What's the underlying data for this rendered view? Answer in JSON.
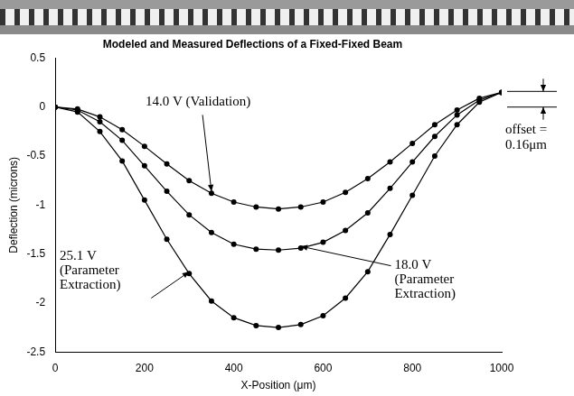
{
  "chart_data": {
    "type": "line",
    "title": "Modeled and Measured Deflections of a Fixed-Fixed Beam",
    "x_label": "X-Position (μm)",
    "y_label": "Deflection (microns)",
    "xlim": [
      0,
      1000
    ],
    "ylim": [
      -2.5,
      0.5
    ],
    "xticks": [
      0,
      200,
      400,
      600,
      800,
      1000
    ],
    "yticks": [
      -2.5,
      -2,
      -1.5,
      -1,
      -0.5,
      0,
      0.5
    ],
    "grid": false,
    "x": [
      0,
      50,
      100,
      150,
      200,
      250,
      300,
      350,
      400,
      450,
      500,
      550,
      600,
      650,
      700,
      750,
      800,
      850,
      900,
      950,
      1000
    ],
    "series": [
      {
        "name": "14.0 V (Validation)",
        "color": "#000000",
        "marker": "circle",
        "line_style": "solid",
        "values": [
          0,
          -0.02,
          -0.1,
          -0.23,
          -0.4,
          -0.58,
          -0.75,
          -0.88,
          -0.97,
          -1.02,
          -1.04,
          -1.02,
          -0.97,
          -0.87,
          -0.73,
          -0.56,
          -0.37,
          -0.18,
          -0.03,
          0.09,
          0.15
        ]
      },
      {
        "name": "18.0 V (Parameter Extraction)",
        "color": "#000000",
        "marker": "circle",
        "line_style": "solid",
        "values": [
          0,
          -0.03,
          -0.15,
          -0.34,
          -0.6,
          -0.86,
          -1.1,
          -1.28,
          -1.4,
          -1.45,
          -1.46,
          -1.44,
          -1.38,
          -1.26,
          -1.08,
          -0.83,
          -0.56,
          -0.3,
          -0.08,
          0.07,
          0.15
        ]
      },
      {
        "name": "25.1 V (Parameter Extraction)",
        "color": "#000000",
        "marker": "circle",
        "line_style": "solid",
        "values": [
          0,
          -0.05,
          -0.25,
          -0.55,
          -0.95,
          -1.35,
          -1.7,
          -1.98,
          -2.15,
          -2.23,
          -2.25,
          -2.22,
          -2.13,
          -1.95,
          -1.68,
          -1.3,
          -0.9,
          -0.5,
          -0.18,
          0.05,
          0.15
        ]
      }
    ],
    "annotations": [
      {
        "text": "offset = 0.16μm",
        "value": 0.16
      }
    ]
  }
}
